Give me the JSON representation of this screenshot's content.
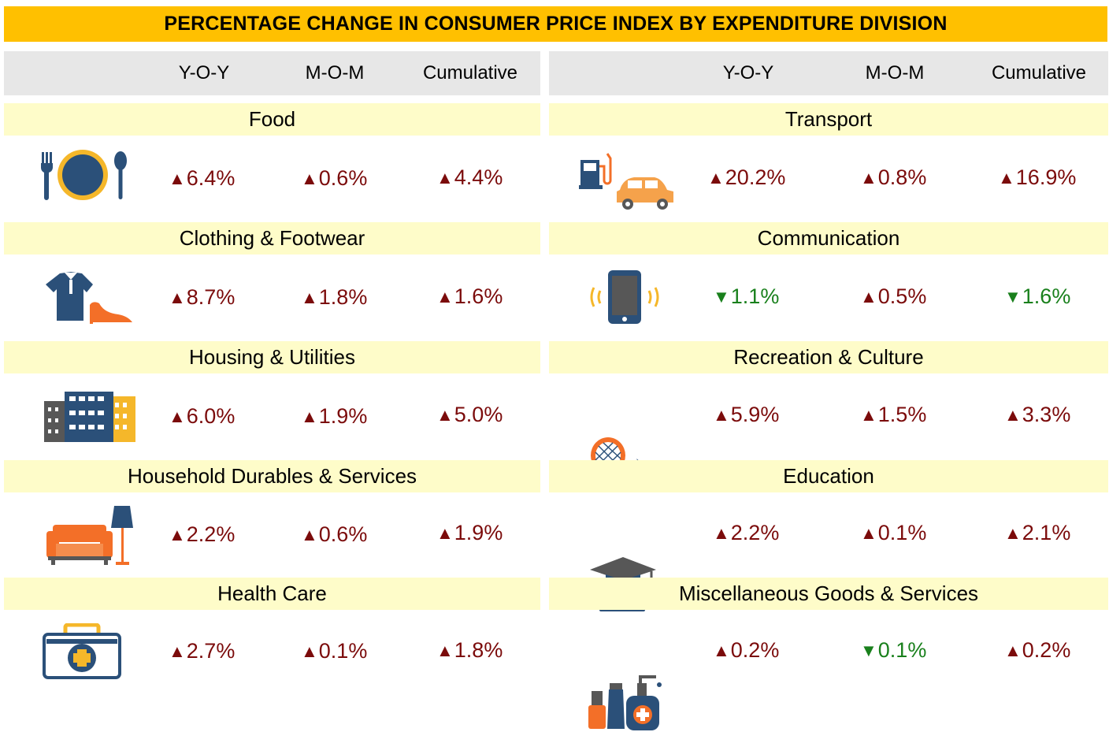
{
  "title": "PERCENTAGE CHANGE IN CONSUMER PRICE INDEX BY EXPENDITURE DIVISION",
  "columns": [
    "Y-O-Y",
    "M-O-M",
    "Cumulative"
  ],
  "colors": {
    "title_bg": "#ffc000",
    "header_bg": "#e7e7e7",
    "category_bg": "#fefcc9",
    "increase": "#7b0b0b",
    "decrease": "#19801c"
  },
  "left": [
    {
      "name": "Food",
      "icon": "plate-cutlery-icon",
      "yoy": {
        "dir": "up",
        "arrow": "▲",
        "value": "6.4%"
      },
      "mom": {
        "dir": "up",
        "arrow": "▲",
        "value": "0.6%"
      },
      "cum": {
        "dir": "up",
        "arrow": "▲",
        "value": "4.4%"
      }
    },
    {
      "name": "Clothing & Footwear",
      "icon": "shirt-shoe-icon",
      "yoy": {
        "dir": "up",
        "arrow": "▲",
        "value": "8.7%"
      },
      "mom": {
        "dir": "up",
        "arrow": "▲",
        "value": "1.8%"
      },
      "cum": {
        "dir": "up",
        "arrow": "▲",
        "value": "1.6%"
      }
    },
    {
      "name": "Housing & Utilities",
      "icon": "buildings-icon",
      "yoy": {
        "dir": "up",
        "arrow": "▲",
        "value": "6.0%"
      },
      "mom": {
        "dir": "up",
        "arrow": "▲",
        "value": "1.9%"
      },
      "cum": {
        "dir": "up",
        "arrow": "▲",
        "value": "5.0%"
      }
    },
    {
      "name": "Household Durables & Services",
      "icon": "sofa-lamp-icon",
      "yoy": {
        "dir": "up",
        "arrow": "▲",
        "value": "2.2%"
      },
      "mom": {
        "dir": "up",
        "arrow": "▲",
        "value": "0.6%"
      },
      "cum": {
        "dir": "up",
        "arrow": "▲",
        "value": "1.9%"
      }
    },
    {
      "name": "Health Care",
      "icon": "first-aid-kit-icon",
      "yoy": {
        "dir": "up",
        "arrow": "▲",
        "value": "2.7%"
      },
      "mom": {
        "dir": "up",
        "arrow": "▲",
        "value": "0.1%"
      },
      "cum": {
        "dir": "up",
        "arrow": "▲",
        "value": "1.8%"
      }
    }
  ],
  "right": [
    {
      "name": "Transport",
      "icon": "fuel-pump-car-icon",
      "yoy": {
        "dir": "up",
        "arrow": "▲",
        "value": "20.2%"
      },
      "mom": {
        "dir": "up",
        "arrow": "▲",
        "value": "0.8%"
      },
      "cum": {
        "dir": "up",
        "arrow": "▲",
        "value": "16.9%"
      }
    },
    {
      "name": "Communication",
      "icon": "mobile-phone-icon",
      "yoy": {
        "dir": "down",
        "arrow": "▼",
        "value": "1.1%"
      },
      "mom": {
        "dir": "up",
        "arrow": "▲",
        "value": "0.5%"
      },
      "cum": {
        "dir": "down",
        "arrow": "▼",
        "value": "1.6%"
      }
    },
    {
      "name": "Recreation & Culture",
      "icon": "racket-ball-icon",
      "yoy": {
        "dir": "up",
        "arrow": "▲",
        "value": "5.9%"
      },
      "mom": {
        "dir": "up",
        "arrow": "▲",
        "value": "1.5%"
      },
      "cum": {
        "dir": "up",
        "arrow": "▲",
        "value": "3.3%"
      }
    },
    {
      "name": "Education",
      "icon": "graduation-cap-books-icon",
      "yoy": {
        "dir": "up",
        "arrow": "▲",
        "value": "2.2%"
      },
      "mom": {
        "dir": "up",
        "arrow": "▲",
        "value": "0.1%"
      },
      "cum": {
        "dir": "up",
        "arrow": "▲",
        "value": "2.1%"
      }
    },
    {
      "name": "Miscellaneous Goods & Services",
      "icon": "toiletries-icon",
      "yoy": {
        "dir": "up",
        "arrow": "▲",
        "value": "0.2%"
      },
      "mom": {
        "dir": "down",
        "arrow": "▼",
        "value": "0.1%"
      },
      "cum": {
        "dir": "up",
        "arrow": "▲",
        "value": "0.2%"
      }
    }
  ]
}
